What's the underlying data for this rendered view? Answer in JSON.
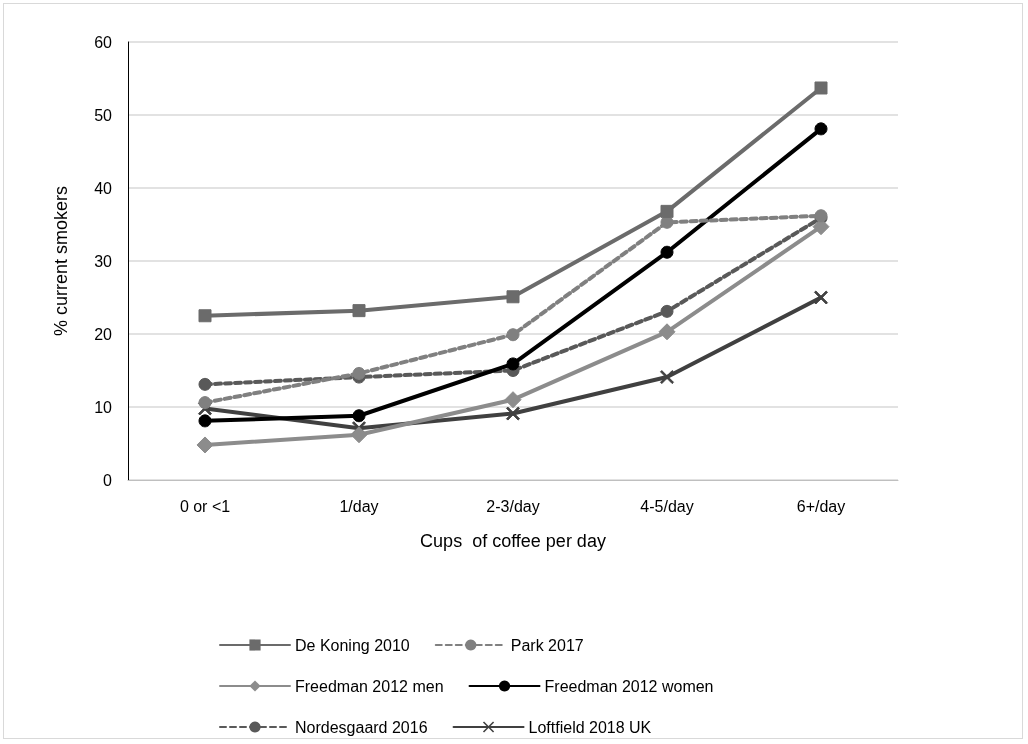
{
  "chart_data": {
    "type": "line",
    "xlabel": "Cups  of coffee per day",
    "ylabel": "% current smokers",
    "categories": [
      "0 or <1",
      "1/day",
      "2-3/day",
      "4-5/day",
      "6+/day"
    ],
    "series": [
      {
        "name": "De Koning 2010",
        "color": "#6b6b6b",
        "marker": "square",
        "line_style": "solid",
        "values": [
          22.5,
          23.2,
          25.1,
          36.8,
          53.7
        ]
      },
      {
        "name": "Park 2017",
        "color": "#808080",
        "marker": "circle",
        "line_style": "dashed",
        "values": [
          10.6,
          14.6,
          19.9,
          35.3,
          36.2
        ]
      },
      {
        "name": "Freedman 2012 men",
        "color": "#8c8c8c",
        "marker": "diamond",
        "line_style": "solid",
        "values": [
          4.8,
          6.2,
          11.0,
          20.3,
          34.7
        ]
      },
      {
        "name": "Freedman 2012 women",
        "color": "#000000",
        "marker": "circle",
        "line_style": "solid",
        "values": [
          8.1,
          8.8,
          15.9,
          31.2,
          48.1
        ]
      },
      {
        "name": "Nordesgaard 2016",
        "color": "#595959",
        "marker": "circle",
        "line_style": "dashed",
        "values": [
          13.1,
          14.1,
          15.0,
          23.1,
          35.9
        ]
      },
      {
        "name": "Loftfield 2018 UK",
        "color": "#404040",
        "marker": "cross",
        "line_style": "solid",
        "values": [
          9.8,
          7.1,
          9.1,
          14.1,
          25.0
        ]
      }
    ],
    "ylim": [
      0,
      60
    ],
    "yticks": [
      0,
      10,
      20,
      30,
      40,
      50,
      60
    ],
    "grid": "y",
    "legend": "bottom"
  }
}
